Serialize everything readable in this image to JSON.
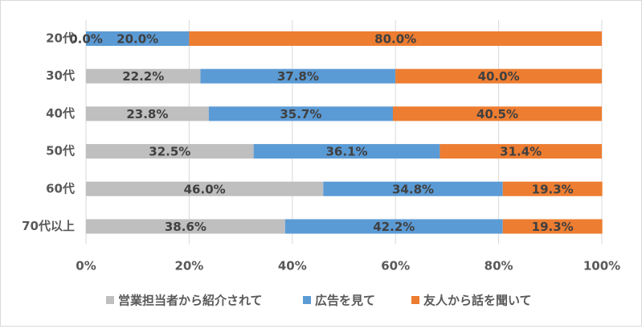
{
  "chart_data": {
    "type": "bar",
    "orientation": "horizontal",
    "stacked": "percent",
    "title": "",
    "xlabel": "",
    "ylabel": "",
    "categories": [
      "20代",
      "30代",
      "40代",
      "50代",
      "60代",
      "70代以上"
    ],
    "series": [
      {
        "name": "営業担当者から紹介されて",
        "color": "#bfbfbf",
        "values": [
          0.0,
          22.2,
          23.8,
          32.5,
          46.0,
          38.6
        ]
      },
      {
        "name": "広告を見て",
        "color": "#5b9bd5",
        "values": [
          20.0,
          37.8,
          35.7,
          36.1,
          34.8,
          42.2
        ]
      },
      {
        "name": "友人から話を聞いて",
        "color": "#ed7d31",
        "values": [
          80.0,
          40.0,
          40.5,
          31.4,
          19.3,
          19.3
        ]
      }
    ],
    "data_labels": [
      [
        "0.0%",
        "20.0%",
        "80.0%"
      ],
      [
        "22.2%",
        "37.8%",
        "40.0%"
      ],
      [
        "23.8%",
        "35.7%",
        "40.5%"
      ],
      [
        "32.5%",
        "36.1%",
        "31.4%"
      ],
      [
        "46.0%",
        "34.8%",
        "19.3%"
      ],
      [
        "38.6%",
        "42.2%",
        "19.3%"
      ]
    ],
    "x_ticks": [
      "0%",
      "20%",
      "40%",
      "60%",
      "80%",
      "100%"
    ],
    "xlim": [
      0,
      100
    ],
    "grid": true,
    "legend_position": "bottom"
  }
}
